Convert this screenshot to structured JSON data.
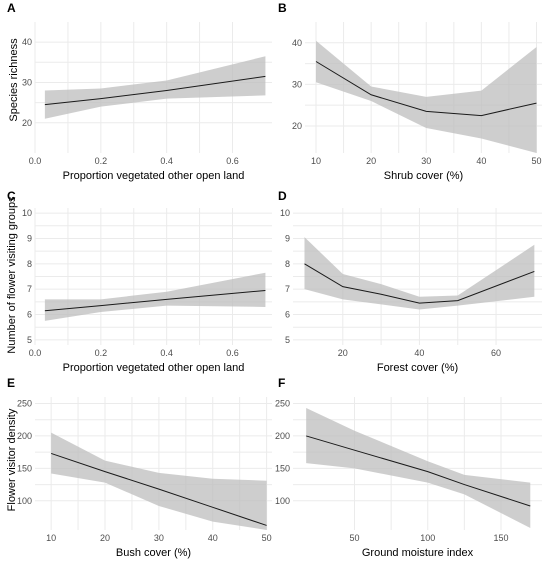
{
  "chart_data": [
    {
      "panel": "A",
      "type": "line",
      "xlabel": "Proportion vegetated other open land",
      "ylabel": "Species richness",
      "xlim": [
        0.0,
        0.72
      ],
      "ylim": [
        12.5,
        45
      ],
      "xticks": [
        0.0,
        0.2,
        0.4,
        0.6
      ],
      "xtick_labels": [
        "0.0",
        "0.2",
        "0.4",
        "0.6"
      ],
      "yticks": [
        20,
        30,
        40
      ],
      "ytick_labels": [
        "20",
        "30",
        "40"
      ],
      "x": [
        0.03,
        0.2,
        0.4,
        0.7
      ],
      "fit": [
        24.5,
        26.0,
        28.0,
        31.5
      ],
      "lower": [
        21.0,
        24.0,
        26.0,
        26.8
      ],
      "upper": [
        28.0,
        28.5,
        30.5,
        36.5
      ]
    },
    {
      "panel": "B",
      "type": "line",
      "xlabel": "Shrub cover (%)",
      "ylabel": "",
      "xlim": [
        8,
        51
      ],
      "ylim": [
        13.5,
        45
      ],
      "xticks": [
        10,
        20,
        30,
        40,
        50
      ],
      "xtick_labels": [
        "10",
        "20",
        "30",
        "40",
        "50"
      ],
      "yticks": [
        20,
        30,
        40
      ],
      "ytick_labels": [
        "20",
        "30",
        "40"
      ],
      "x": [
        10,
        20,
        30,
        40,
        50
      ],
      "fit": [
        35.5,
        27.5,
        23.5,
        22.5,
        25.5
      ],
      "lower": [
        30.5,
        26.0,
        19.5,
        17.0,
        13.5
      ],
      "upper": [
        40.5,
        29.5,
        27.0,
        28.5,
        39.0
      ]
    },
    {
      "panel": "C",
      "type": "line",
      "xlabel": "Proportion vegetated other open land",
      "ylabel": "",
      "xlim": [
        0.0,
        0.72
      ],
      "ylim": [
        4.8,
        10.2
      ],
      "xticks": [
        0.0,
        0.2,
        0.4,
        0.6
      ],
      "xtick_labels": [
        "0.0",
        "0.2",
        "0.4",
        "0.6"
      ],
      "yticks": [
        5,
        6,
        7,
        8,
        9,
        10
      ],
      "ytick_labels": [
        "5",
        "6",
        "7",
        "8",
        "9",
        "10"
      ],
      "x": [
        0.03,
        0.2,
        0.4,
        0.7
      ],
      "fit": [
        6.15,
        6.35,
        6.6,
        6.95
      ],
      "lower": [
        5.75,
        6.1,
        6.35,
        6.3
      ],
      "upper": [
        6.6,
        6.6,
        6.9,
        7.65
      ]
    },
    {
      "panel": "D",
      "type": "line",
      "xlabel": "Forest cover (%)",
      "ylabel": "",
      "xlim": [
        7,
        72
      ],
      "ylim": [
        4.8,
        10.2
      ],
      "xticks": [
        20,
        40,
        60
      ],
      "xtick_labels": [
        "20",
        "40",
        "60"
      ],
      "yticks": [
        5,
        6,
        7,
        8,
        9,
        10
      ],
      "ytick_labels": [
        "5",
        "6",
        "7",
        "8",
        "9",
        "10"
      ],
      "x": [
        10,
        20,
        30,
        40,
        50,
        70
      ],
      "fit": [
        8.0,
        7.1,
        6.8,
        6.45,
        6.55,
        7.7
      ],
      "lower": [
        7.0,
        6.6,
        6.4,
        6.2,
        6.35,
        6.7
      ],
      "upper": [
        9.05,
        7.6,
        7.2,
        6.7,
        6.75,
        8.75
      ]
    },
    {
      "panel": "E",
      "type": "line",
      "xlabel": "Bush cover (%)",
      "ylabel": "",
      "xlim": [
        7,
        51
      ],
      "ylim": [
        55,
        260
      ],
      "xticks": [
        10,
        20,
        30,
        40,
        50
      ],
      "xtick_labels": [
        "10",
        "20",
        "30",
        "40",
        "50"
      ],
      "yticks": [
        100,
        150,
        200,
        250
      ],
      "ytick_labels": [
        "100",
        "150",
        "200",
        "250"
      ],
      "x": [
        10,
        20,
        30,
        40,
        50
      ],
      "fit": [
        173,
        145,
        118,
        90,
        62
      ],
      "lower": [
        142,
        128,
        92,
        68,
        55
      ],
      "upper": [
        205,
        162,
        143,
        134,
        131
      ]
    },
    {
      "panel": "F",
      "type": "line",
      "xlabel": "Ground moisture index",
      "ylabel": "",
      "xlim": [
        8,
        178
      ],
      "ylim": [
        55,
        260
      ],
      "xticks": [
        50,
        100,
        150
      ],
      "xtick_labels": [
        "50",
        "100",
        "150"
      ],
      "yticks": [
        100,
        150,
        200,
        250
      ],
      "ytick_labels": [
        "100",
        "150",
        "200",
        "250"
      ],
      "x": [
        17,
        50,
        100,
        125,
        170
      ],
      "fit": [
        200,
        178,
        145,
        125,
        92
      ],
      "lower": [
        158,
        150,
        128,
        110,
        58
      ],
      "upper": [
        243,
        208,
        161,
        140,
        128
      ]
    }
  ],
  "figure": {
    "ylabel_left_top": "Species richness",
    "ylabel_left_middle": "Number of flower visiting groups",
    "ylabel_left_bottom": "Flower visitor density"
  }
}
